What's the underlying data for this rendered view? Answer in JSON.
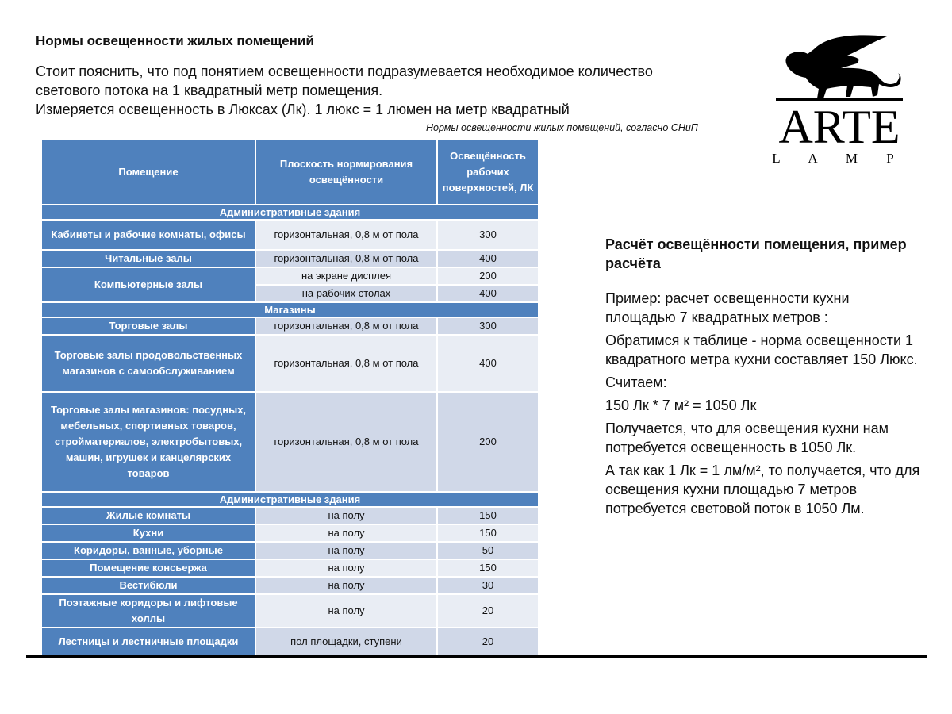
{
  "title": "Нормы освещенности жилых помещений",
  "intro": [
    "Стоит пояснить, что под понятием освещенности подразумевается необходимое количество светового потока на 1 квадратный метр помещения.",
    "Измеряется освещенность в Люксах (Лк). 1 люкс = 1 люмен на метр квадратный"
  ],
  "caption": "Нормы освещенности жилых помещений, согласно СНиП",
  "table": {
    "headers": [
      "Помещение",
      "Плоскость нормирования освещённости",
      "Освещённость рабочих поверхностей, ЛК"
    ],
    "sections": [
      {
        "title": "Административные здания",
        "rows": [
          {
            "room": "Кабинеты и рабочие комнаты, офисы",
            "plane": "горизонтальная, 0,8 м от пола",
            "lux": "300"
          },
          {
            "room": "Читальные залы",
            "plane": "горизонтальная, 0,8 м от пола",
            "lux": "400"
          },
          {
            "room": "Компьютерные залы",
            "plane": "на экране дисплея",
            "lux": "200"
          },
          {
            "room": "",
            "plane": "на рабочих столах",
            "lux": "400"
          }
        ]
      },
      {
        "title": "Магазины",
        "rows": [
          {
            "room": "Торговые залы",
            "plane": "горизонтальная, 0,8 м от пола",
            "lux": "300"
          },
          {
            "room": "Торговые залы продовольственных магазинов с самообслуживанием",
            "plane": "горизонтальная, 0,8 м от пола",
            "lux": "400"
          },
          {
            "room": "Торговые залы магазинов: посудных, мебельных, спортивных товаров, стройматериалов, электробытовых, машин, игрушек и канцелярских товаров",
            "plane": "горизонтальная, 0,8 м от пола",
            "lux": "200"
          }
        ]
      },
      {
        "title": "Административные здания",
        "rows": [
          {
            "room": "Жилые комнаты",
            "plane": "на полу",
            "lux": "150"
          },
          {
            "room": "Кухни",
            "plane": "на полу",
            "lux": "150"
          },
          {
            "room": "Коридоры, ванные, уборные",
            "plane": "на полу",
            "lux": "50"
          },
          {
            "room": "Помещение консьержа",
            "plane": "на полу",
            "lux": "150"
          },
          {
            "room": "Вестибюли",
            "plane": "на полу",
            "lux": "30"
          },
          {
            "room": "Поэтажные коридоры и лифтовые холлы",
            "plane": "на полу",
            "lux": "20"
          },
          {
            "room": "Лестницы и лестничные площадки",
            "plane": "пол площадки, ступени",
            "lux": "20"
          }
        ]
      }
    ]
  },
  "logo": {
    "brand": "ARTE",
    "sub": "L A M P"
  },
  "calc": {
    "heading": "Расчёт освещённости помещения, пример расчёта",
    "p1": "Пример: расчет освещенности кухни площадью 7 квадратных метров :",
    "p2": "Обратимся к таблице - норма освещенности 1 квадратного метра кухни составляет 150 Люкс.",
    "p3": "Считаем:",
    "p4": "150 Лк * 7 м² = 1050 Лк",
    "p5": "Получается, что для освещения кухни нам потребуется освещенность в 1050 Лк.",
    "p6": "А так как 1 Лк = 1 лм/м², то получается, что для освещения кухни площадью 7 метров потребуется световой поток в 1050 Лм."
  },
  "colors": {
    "header": "#4f81bd",
    "cell_light": "#e9edf4",
    "cell_dark": "#d0d8e8"
  }
}
